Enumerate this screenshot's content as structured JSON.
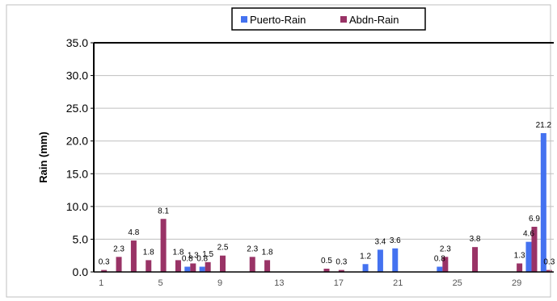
{
  "chart_data": {
    "type": "bar",
    "ylabel": "Rain (mm)",
    "ylim": [
      0,
      35
    ],
    "yticks": [
      "0.0",
      "5.0",
      "10.0",
      "15.0",
      "20.0",
      "25.0",
      "30.0",
      "35.0"
    ],
    "x": [
      1,
      2,
      3,
      4,
      5,
      6,
      7,
      8,
      9,
      10,
      11,
      12,
      13,
      14,
      15,
      16,
      17,
      18,
      19,
      20,
      21,
      22,
      23,
      24,
      25,
      26,
      27,
      28,
      29,
      30,
      31
    ],
    "xtick_labels": [
      "1",
      "5",
      "9",
      "13",
      "17",
      "21",
      "25",
      "29"
    ],
    "grid": "horizontal",
    "legend_position": "top",
    "series": [
      {
        "name": "Puerto-Rain",
        "color": "#4472f0",
        "values": [
          0,
          0,
          0,
          0,
          0,
          0,
          0.8,
          0.8,
          0,
          0,
          0,
          0,
          0,
          0,
          0,
          0,
          0,
          0,
          1.2,
          3.4,
          3.6,
          0,
          0,
          0.8,
          0,
          0,
          0,
          0,
          0,
          4.6,
          21.2
        ],
        "labels": [
          "",
          "",
          "",
          "",
          "",
          "",
          "0.8",
          "0.8",
          "",
          "",
          "",
          "",
          "",
          "",
          "",
          "",
          "",
          "",
          "1.2",
          "3.4",
          "3.6",
          "",
          "",
          "0.8",
          "",
          "",
          "",
          "",
          "",
          "4.6",
          "21.2"
        ]
      },
      {
        "name": "Abdn-Rain",
        "color": "#993366",
        "values": [
          0.3,
          2.3,
          4.8,
          1.8,
          8.1,
          1.8,
          1.3,
          1.5,
          2.5,
          0,
          2.3,
          1.8,
          0,
          0,
          0,
          0.5,
          0.3,
          0,
          0,
          0,
          0,
          0,
          0,
          2.3,
          0,
          3.8,
          0,
          0,
          1.3,
          6.9,
          0.3
        ],
        "labels": [
          "0.3",
          "2.3",
          "4.8",
          "1.8",
          "8.1",
          "1.8",
          "1.3",
          "1.5",
          "2.5",
          "",
          "2.3",
          "1.8",
          "",
          "",
          "",
          "0.5",
          "0.3",
          "",
          "",
          "",
          "",
          "",
          "",
          "2.3",
          "",
          "3.8",
          "",
          "",
          "1.3",
          "6.9",
          "0.3"
        ]
      }
    ]
  }
}
